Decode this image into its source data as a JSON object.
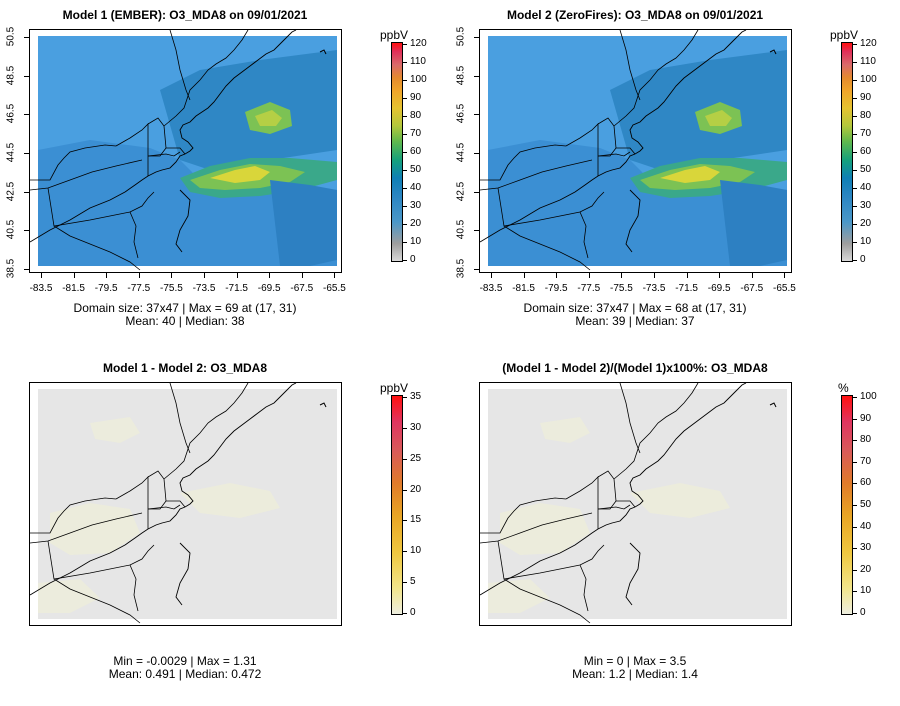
{
  "panels": [
    {
      "title": "Model 1 (EMBER): O3_MDA8 on 09/01/2021",
      "stats_line1": "Domain size: 37x47 | Max = 69 at (17, 31)",
      "stats_line2": "Mean: 40 |  Median: 38",
      "colorbar": {
        "unit": "ppbV",
        "labels": [
          "120",
          "110",
          "100",
          "90",
          "80",
          "70",
          "60",
          "50",
          "40",
          "30",
          "20",
          "10",
          "0"
        ]
      },
      "field": "concentration",
      "show_axes": true
    },
    {
      "title": "Model 2 (ZeroFires): O3_MDA8 on 09/01/2021",
      "stats_line1": "Domain size: 37x47 | Max = 68 at (17, 31)",
      "stats_line2": "Mean: 39 |  Median: 37",
      "colorbar": {
        "unit": "ppbV",
        "labels": [
          "120",
          "110",
          "100",
          "90",
          "80",
          "70",
          "60",
          "50",
          "40",
          "30",
          "20",
          "10",
          "0"
        ]
      },
      "field": "concentration",
      "show_axes": true
    },
    {
      "title": "Model 1 - Model 2: O3_MDA8",
      "stats_line1": "Min = -0.0029 | Max = 1.31",
      "stats_line2": "Mean: 0.491 |  Median: 0.472",
      "colorbar": {
        "unit": "ppbV",
        "labels": [
          "35",
          "30",
          "25",
          "20",
          "15",
          "10",
          "5",
          "0"
        ]
      },
      "field": "difference",
      "show_axes": false
    },
    {
      "title": "(Model 1 - Model 2)/(Model 1)x100%: O3_MDA8",
      "stats_line1": "Min = 0 | Max = 3.5",
      "stats_line2": "Mean: 1.2 |  Median: 1.4",
      "colorbar": {
        "unit": "%",
        "labels": [
          "100",
          "90",
          "80",
          "70",
          "60",
          "50",
          "40",
          "30",
          "20",
          "10",
          "0"
        ]
      },
      "field": "difference",
      "show_axes": false
    }
  ],
  "axes": {
    "x_ticks": [
      "-83.5",
      "-81.5",
      "-79.5",
      "-77.5",
      "-75.5",
      "-73.5",
      "-71.5",
      "-69.5",
      "-67.5",
      "-65.5"
    ],
    "y_ticks": [
      "38.5",
      "40.5",
      "42.5",
      "44.5",
      "46.5",
      "48.5",
      "50.5"
    ]
  },
  "colors": {
    "conc_palette": [
      "#d9d9d9",
      "#a8a8b8",
      "#5b9bd5",
      "#4a90d0",
      "#2f86c4",
      "#1e7fb8",
      "#00a07a",
      "#6cbf4a",
      "#b8c93e",
      "#e8c532",
      "#f0a020",
      "#e06060",
      "#e8304a"
    ],
    "diff_low": "#eeeed9",
    "diff_bg": "#e6e6e6"
  }
}
